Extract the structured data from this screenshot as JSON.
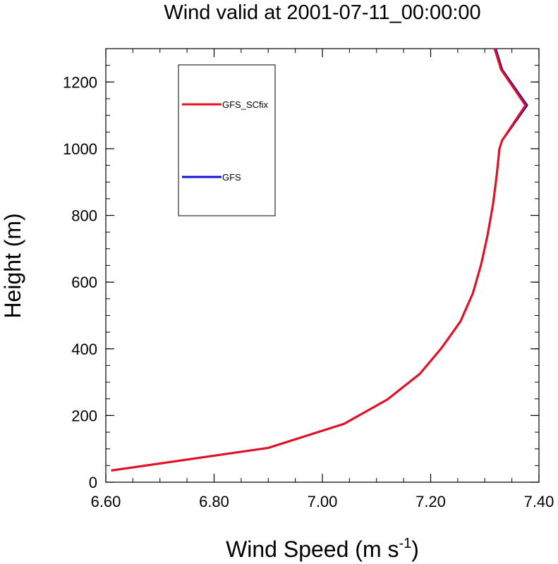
{
  "chart_data": {
    "type": "line",
    "title": "Wind valid at 2001-07-11_00:00:00",
    "xlabel_main": "Wind Speed (m s",
    "xlabel_sup": "-1",
    "xlabel_close": ")",
    "ylabel": "Height (m)",
    "xlim": [
      6.6,
      7.4
    ],
    "ylim": [
      0,
      1300
    ],
    "x_ticks": [
      6.6,
      6.8,
      7.0,
      7.2,
      7.4
    ],
    "x_tick_labels": [
      "6.60",
      "6.80",
      "7.00",
      "7.20",
      "7.40"
    ],
    "x_minor_step": 0.05,
    "y_ticks": [
      0,
      200,
      400,
      600,
      800,
      1000,
      1200
    ],
    "y_tick_labels": [
      "0",
      "200",
      "400",
      "600",
      "800",
      "1000",
      "1200"
    ],
    "y_minor_step": 50,
    "grid": false,
    "legend_position": "top-left",
    "series": [
      {
        "name": "GFS_SCfix",
        "color": "#e8101c",
        "x": [
          6.61,
          6.9,
          7.04,
          7.12,
          7.18,
          7.22,
          7.255,
          7.278,
          7.293,
          7.305,
          7.315,
          7.322,
          7.327,
          7.332,
          7.375,
          7.33,
          7.318
        ],
        "y": [
          35,
          103,
          175,
          248,
          325,
          402,
          482,
          567,
          652,
          740,
          832,
          920,
          1000,
          1025,
          1130,
          1237,
          1300
        ]
      },
      {
        "name": "GFS",
        "color": "#1010d8",
        "x": [
          6.61,
          6.9,
          7.04,
          7.12,
          7.18,
          7.22,
          7.255,
          7.278,
          7.293,
          7.305,
          7.315,
          7.322,
          7.327,
          7.332,
          7.378,
          7.332,
          7.32
        ],
        "y": [
          35,
          103,
          175,
          248,
          325,
          402,
          482,
          567,
          652,
          740,
          832,
          920,
          1000,
          1025,
          1130,
          1237,
          1300
        ]
      }
    ]
  }
}
